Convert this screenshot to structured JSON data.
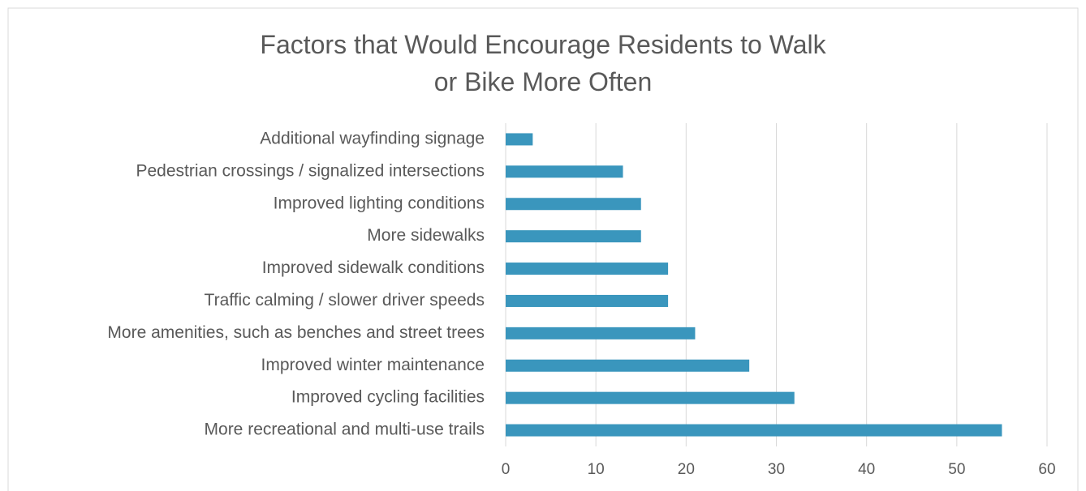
{
  "chart_data": {
    "type": "barh",
    "title": "Factors that Would Encourage Residents to Walk or Bike More Often",
    "categories": [
      "Additional wayfinding signage",
      "Pedestrian crossings / signalized intersections",
      "Improved lighting conditions",
      "More sidewalks",
      "Improved sidewalk conditions",
      "Traffic calming / slower driver speeds",
      "More amenities, such as benches and street trees",
      "Improved winter maintenance",
      "Improved cycling facilities",
      "More recreational and multi-use trails"
    ],
    "values": [
      3,
      13,
      15,
      15,
      18,
      18,
      21,
      27,
      32,
      55
    ],
    "color": "#3a96bd",
    "xlim": [
      0,
      60
    ],
    "xticks": [
      0,
      10,
      20,
      30,
      40,
      50,
      60
    ],
    "grid": true
  }
}
